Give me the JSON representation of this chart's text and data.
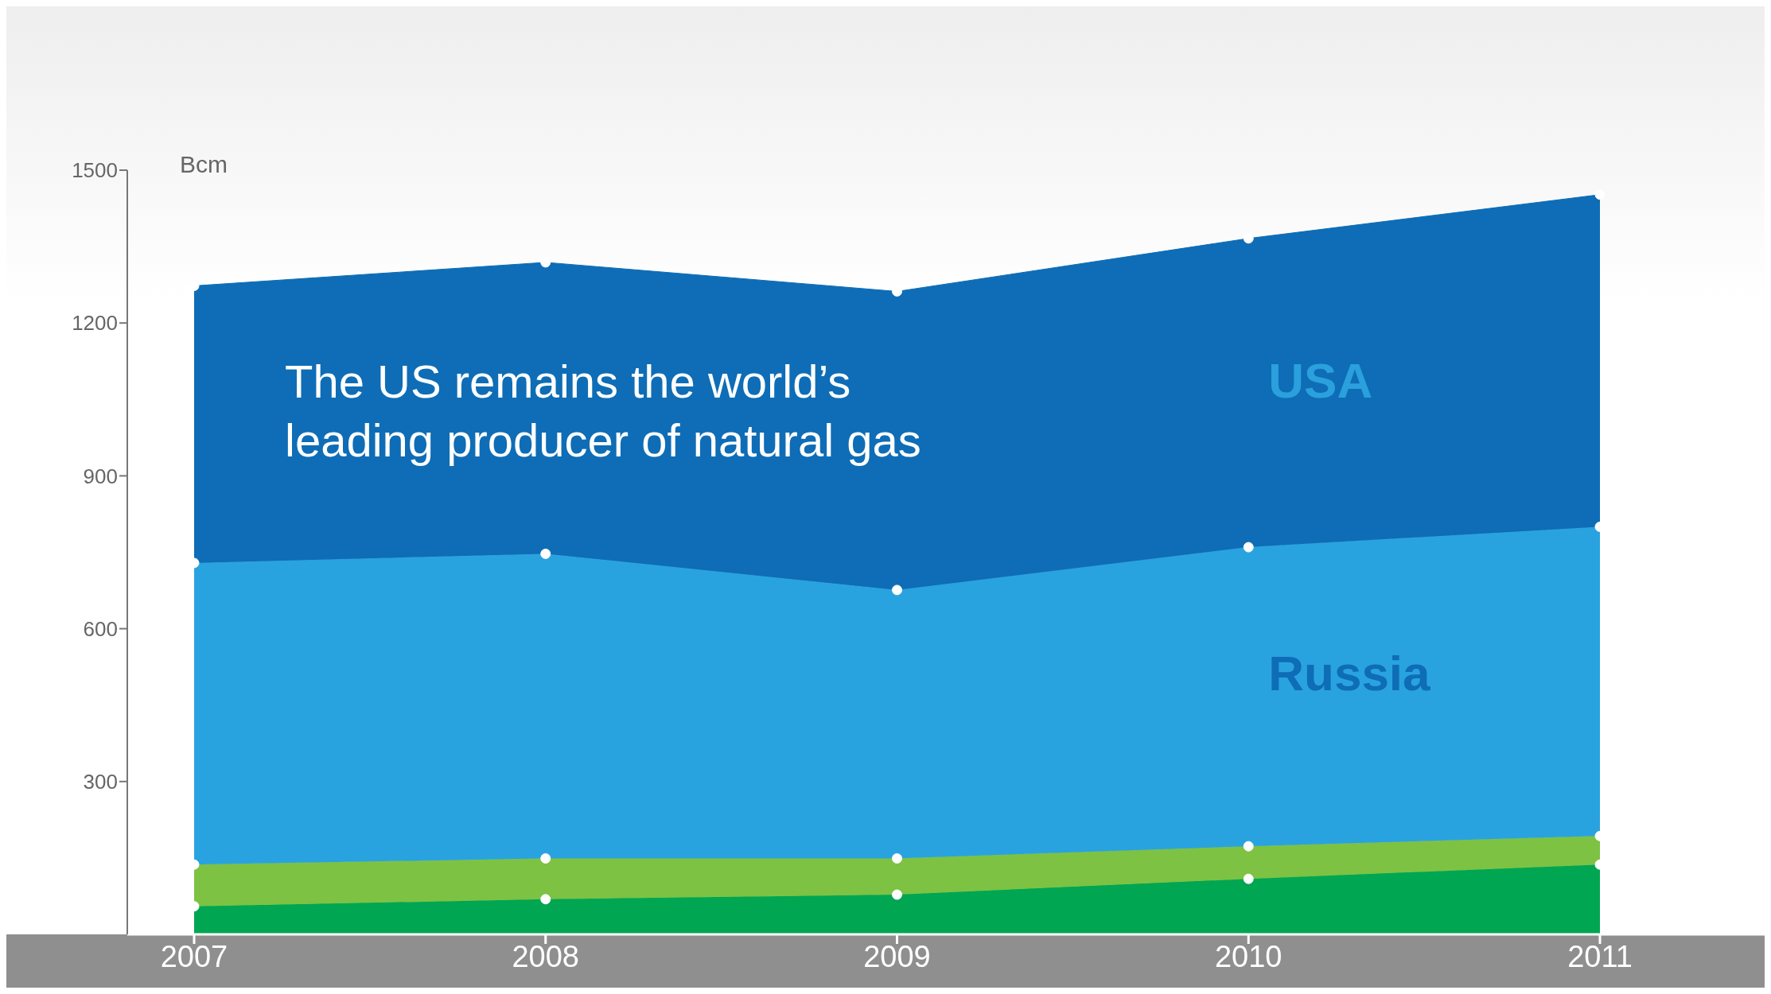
{
  "chart_data": {
    "type": "area",
    "stacked": true,
    "title": "The US remains the world’s leading producer of natural gas",
    "ylabel": "Bcm",
    "categories": [
      "2007",
      "2008",
      "2009",
      "2010",
      "2011"
    ],
    "series": [
      {
        "color": "#00a651",
        "values": [
          55,
          69,
          78,
          109,
          137
        ]
      },
      {
        "color": "#7dc243",
        "values": [
          82,
          80,
          71,
          64,
          56
        ]
      },
      {
        "name": "Russia",
        "color": "#29a3df",
        "values": [
          592,
          598,
          527,
          587,
          607
        ]
      },
      {
        "name": "USA",
        "color": "#0e6db6",
        "values": [
          544,
          572,
          586,
          606,
          652
        ]
      }
    ],
    "ylim": [
      0,
      1500
    ],
    "yticks": [
      300,
      600,
      900,
      1200,
      1500
    ],
    "grid": false,
    "legend": false,
    "marker": "circle"
  }
}
